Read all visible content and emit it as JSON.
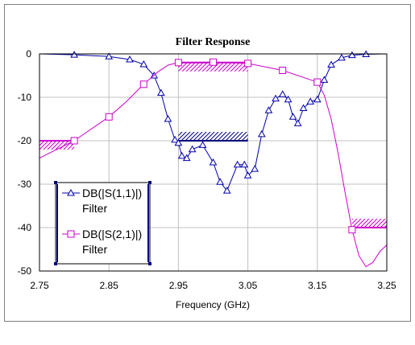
{
  "chart_data": {
    "type": "line",
    "title": "Filter Response",
    "xlabel": "Frequency (GHz)",
    "ylabel": "",
    "xlim": [
      2.75,
      3.25
    ],
    "ylim": [
      -50,
      0
    ],
    "x_ticks": [
      "2.75",
      "2.85",
      "2.95",
      "3.05",
      "3.15",
      "3.25"
    ],
    "y_ticks": [
      "0",
      "-10",
      "-20",
      "-30",
      "-40",
      "-50"
    ],
    "grid": true,
    "legend_position": "bottom-left",
    "series": [
      {
        "name": "DB(|S(1,1)|)",
        "source": "Filter",
        "color": "#0000aa",
        "marker": "triangle",
        "x": [
          2.75,
          2.8,
          2.85,
          2.88,
          2.9,
          2.915,
          2.925,
          2.935,
          2.945,
          2.95,
          2.955,
          2.962,
          2.97,
          2.985,
          3.0,
          3.01,
          3.02,
          3.035,
          3.045,
          3.05,
          3.06,
          3.07,
          3.08,
          3.09,
          3.1,
          3.108,
          3.115,
          3.122,
          3.13,
          3.14,
          3.15,
          3.16,
          3.17,
          3.185,
          3.2,
          3.22,
          3.25
        ],
        "y": [
          0,
          -0.2,
          -0.6,
          -1.3,
          -2.4,
          -5,
          -9,
          -15,
          -19.8,
          -20.5,
          -23.5,
          -24,
          -22,
          -21,
          -25,
          -29.5,
          -31.5,
          -25.5,
          -25.5,
          -28,
          -26.5,
          -18.5,
          -13,
          -10.3,
          -9.3,
          -10.5,
          -14.5,
          -16,
          -12.5,
          -11,
          -10.5,
          -6,
          -2.5,
          -0.9,
          -0.3,
          -0.1,
          0
        ]
      },
      {
        "name": "DB(|S(2,1)|)",
        "source": "Filter",
        "color": "#cc00cc",
        "marker": "square",
        "x": [
          2.75,
          2.8,
          2.85,
          2.875,
          2.9,
          2.92,
          2.935,
          2.95,
          3.0,
          3.05,
          3.1,
          3.15,
          3.16,
          3.17,
          3.18,
          3.19,
          3.2,
          3.21,
          3.22,
          3.23,
          3.24,
          3.25
        ],
        "y": [
          -24,
          -20,
          -14.5,
          -11,
          -7,
          -4.2,
          -2.6,
          -2,
          -1.9,
          -2.2,
          -3.8,
          -6.5,
          -9.5,
          -15,
          -23,
          -32,
          -40.5,
          -46.5,
          -49,
          -48,
          -45.5,
          -44
        ],
        "marker_x": [
          2.75,
          2.8,
          2.85,
          2.9,
          2.95,
          3.0,
          3.05,
          3.1,
          3.15,
          3.2,
          3.25
        ],
        "marker_y": [
          -24,
          -20,
          -14.5,
          -7,
          -2,
          -1.9,
          -2.2,
          -3.8,
          -6.5,
          -40.5,
          -44
        ]
      }
    ],
    "spec_masks": [
      {
        "series": "DB(|S(2,1)|)",
        "x": [
          2.75,
          2.8
        ],
        "y": -20,
        "hatch": "below",
        "color": "#cc00cc"
      },
      {
        "series": "DB(|S(2,1)|)",
        "x": [
          2.95,
          3.05
        ],
        "y": -2,
        "hatch": "below",
        "color": "#cc00cc"
      },
      {
        "series": "DB(|S(2,1)|)",
        "x": [
          3.2,
          3.25
        ],
        "y": -40,
        "hatch": "above",
        "color": "#cc00cc"
      },
      {
        "series": "DB(|S(1,1)|)",
        "x": [
          2.95,
          3.05
        ],
        "y": -20,
        "hatch": "above",
        "color": "#000080"
      }
    ]
  }
}
